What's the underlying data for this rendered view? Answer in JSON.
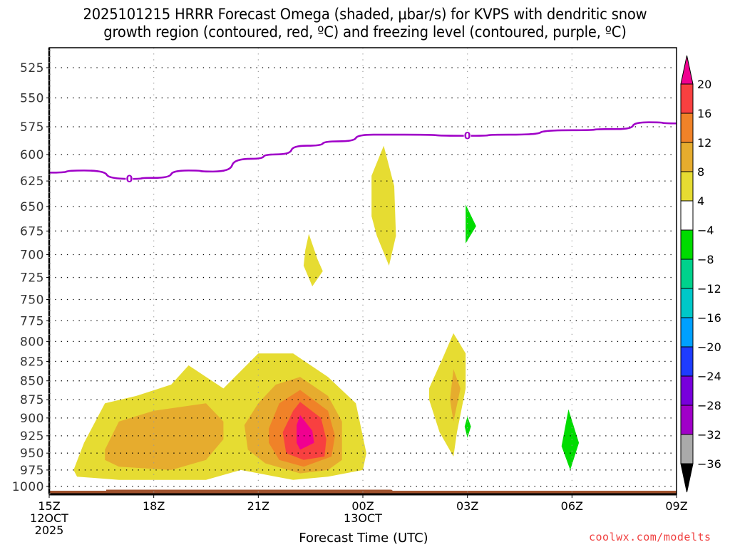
{
  "title_line1": "2025101215 HRRR Forecast Omega (shaded, μbar/s) for KVPS with dendritic snow",
  "title_line2": "growth region (contoured, red, ºC) and freezing level (contoured, purple, ºC)",
  "credit": "coolwx.com/modelts",
  "chart_data": {
    "type": "heatmap",
    "title": "2025101215 HRRR Forecast Omega (shaded, μbar/s) for KVPS with dendritic snow growth region (contoured, red, ºC) and freezing level (contoured, purple, ºC)",
    "xlabel": "Forecast Time (UTC)",
    "ylabel": "",
    "x_range_hours": [
      0,
      18
    ],
    "x_ticks": [
      {
        "hour": 0,
        "label": [
          "15Z",
          "12OCT",
          "2025"
        ]
      },
      {
        "hour": 3,
        "label": [
          "18Z"
        ]
      },
      {
        "hour": 6,
        "label": [
          "21Z"
        ]
      },
      {
        "hour": 9,
        "label": [
          "00Z",
          "13OCT"
        ]
      },
      {
        "hour": 12,
        "label": [
          "03Z"
        ]
      },
      {
        "hour": 15,
        "label": [
          "06Z"
        ]
      },
      {
        "hour": 18,
        "label": [
          "09Z"
        ]
      }
    ],
    "y_axis": "pressure (hPa, log scale, reversed)",
    "y_ticks": [
      525,
      550,
      575,
      600,
      625,
      650,
      675,
      700,
      725,
      750,
      775,
      800,
      825,
      850,
      875,
      900,
      925,
      950,
      975,
      1000
    ],
    "y_range": [
      1015,
      508
    ],
    "grid": true,
    "colorbar": {
      "position": "right",
      "levels": [
        20,
        16,
        12,
        8,
        4,
        -4,
        -8,
        -12,
        -16,
        -20,
        -24,
        -28,
        -32,
        -36
      ],
      "colors": [
        "#f00090",
        "#f84040",
        "#f08228",
        "#e6ac2e",
        "#e6dc32",
        "#ffffff",
        "#00dc00",
        "#00d28c",
        "#00c8c8",
        "#00a0ff",
        "#1e3cff",
        "#7800dc",
        "#a000c8",
        "#aaaaaa",
        "#000000"
      ],
      "extend": "both"
    },
    "omega_regions": [
      {
        "name": "low-level-lift-west",
        "level": "4-8",
        "color": "#e6dc32",
        "points": [
          [
            0.7,
            975
          ],
          [
            1.0,
            935
          ],
          [
            1.6,
            880
          ],
          [
            2.5,
            870
          ],
          [
            3.5,
            855
          ],
          [
            4.0,
            830
          ],
          [
            5.0,
            860
          ],
          [
            6.0,
            815
          ],
          [
            7.0,
            815
          ],
          [
            8.0,
            845
          ],
          [
            8.8,
            880
          ],
          [
            9.1,
            950
          ],
          [
            9.0,
            975
          ],
          [
            8.0,
            985
          ],
          [
            7.0,
            990
          ],
          [
            5.5,
            975
          ],
          [
            4.5,
            990
          ],
          [
            2.0,
            990
          ],
          [
            0.8,
            985
          ]
        ]
      },
      {
        "name": "omega-west-8-12",
        "level": "8-12",
        "color": "#e6ac2e",
        "points": [
          [
            1.6,
            945
          ],
          [
            2.0,
            905
          ],
          [
            3.0,
            890
          ],
          [
            4.5,
            880
          ],
          [
            5.0,
            905
          ],
          [
            5.0,
            930
          ],
          [
            4.5,
            960
          ],
          [
            3.5,
            975
          ],
          [
            2.0,
            970
          ],
          [
            1.6,
            960
          ]
        ]
      },
      {
        "name": "omega-east-8-12",
        "level": "8-12",
        "color": "#e6ac2e",
        "points": [
          [
            5.6,
            910
          ],
          [
            6.0,
            880
          ],
          [
            6.5,
            855
          ],
          [
            7.2,
            845
          ],
          [
            8.0,
            870
          ],
          [
            8.4,
            905
          ],
          [
            8.4,
            960
          ],
          [
            8.0,
            975
          ],
          [
            7.2,
            980
          ],
          [
            6.2,
            965
          ],
          [
            5.7,
            945
          ]
        ]
      },
      {
        "name": "omega-east-12-16",
        "level": "12-16",
        "color": "#f08228",
        "points": [
          [
            6.3,
            915
          ],
          [
            6.6,
            880
          ],
          [
            7.2,
            862
          ],
          [
            8.0,
            890
          ],
          [
            8.2,
            925
          ],
          [
            8.1,
            955
          ],
          [
            7.3,
            970
          ],
          [
            6.6,
            960
          ],
          [
            6.3,
            935
          ]
        ]
      },
      {
        "name": "omega-east-16-20",
        "level": "16-20",
        "color": "#f84040",
        "points": [
          [
            6.7,
            920
          ],
          [
            7.0,
            890
          ],
          [
            7.2,
            878
          ],
          [
            7.8,
            900
          ],
          [
            7.95,
            930
          ],
          [
            7.9,
            955
          ],
          [
            7.3,
            960
          ],
          [
            6.8,
            950
          ]
        ]
      },
      {
        "name": "omega-max",
        "level": ">20",
        "color": "#f00090",
        "points": [
          [
            7.1,
            910
          ],
          [
            7.2,
            896
          ],
          [
            7.55,
            918
          ],
          [
            7.6,
            935
          ],
          [
            7.2,
            945
          ],
          [
            7.1,
            935
          ]
        ]
      },
      {
        "name": "mid-level-lift-1",
        "level": "4-8",
        "color": "#e6dc32",
        "points": [
          [
            7.45,
            678
          ],
          [
            7.7,
            705
          ],
          [
            7.85,
            718
          ],
          [
            7.55,
            735
          ],
          [
            7.3,
            712
          ],
          [
            7.35,
            695
          ]
        ]
      },
      {
        "name": "mid-level-lift-2",
        "level": "4-8",
        "color": "#e6dc32",
        "points": [
          [
            9.25,
            620
          ],
          [
            9.6,
            592
          ],
          [
            9.9,
            630
          ],
          [
            9.95,
            680
          ],
          [
            9.75,
            712
          ],
          [
            9.4,
            680
          ],
          [
            9.25,
            660
          ]
        ]
      },
      {
        "name": "lift-03z-east",
        "level": "4-8",
        "color": "#e6dc32",
        "points": [
          [
            10.9,
            860
          ],
          [
            11.3,
            820
          ],
          [
            11.6,
            790
          ],
          [
            11.95,
            815
          ],
          [
            11.95,
            860
          ],
          [
            11.7,
            920
          ],
          [
            11.6,
            955
          ],
          [
            11.2,
            920
          ],
          [
            10.9,
            875
          ]
        ]
      },
      {
        "name": "lift-03z-inner",
        "level": "8-12",
        "color": "#e6ac2e",
        "points": [
          [
            11.5,
            875
          ],
          [
            11.6,
            835
          ],
          [
            11.8,
            860
          ],
          [
            11.6,
            905
          ]
        ]
      },
      {
        "name": "sink-1",
        "level": "-4 to -8",
        "color": "#00dc00",
        "points": [
          [
            11.95,
            690
          ],
          [
            11.95,
            648
          ],
          [
            12.25,
            670
          ],
          [
            11.95,
            688
          ]
        ]
      },
      {
        "name": "sink-2",
        "level": "-4 to -8",
        "color": "#00dc00",
        "points": [
          [
            12.0,
            898
          ],
          [
            12.1,
            912
          ],
          [
            12.0,
            928
          ],
          [
            11.92,
            912
          ]
        ]
      },
      {
        "name": "sink-3",
        "level": "-4 to -8",
        "color": "#00dc00",
        "points": [
          [
            14.9,
            888
          ],
          [
            15.2,
            935
          ],
          [
            14.95,
            975
          ],
          [
            14.7,
            940
          ]
        ]
      }
    ],
    "freezing_level_0C": {
      "color": "#a000c8",
      "label": "0",
      "points": [
        [
          0,
          617
        ],
        [
          1.0,
          615
        ],
        [
          2.3,
          623
        ],
        [
          3.0,
          622
        ],
        [
          4.0,
          615
        ],
        [
          4.7,
          616
        ],
        [
          5.8,
          604
        ],
        [
          6.5,
          600
        ],
        [
          7.4,
          592
        ],
        [
          8.3,
          588
        ],
        [
          9.3,
          582
        ],
        [
          10.2,
          582
        ],
        [
          12.0,
          583
        ],
        [
          13.2,
          582
        ],
        [
          15.0,
          578
        ],
        [
          16.3,
          577
        ],
        [
          17.2,
          571
        ],
        [
          18.0,
          572
        ]
      ],
      "label_positions_hours": [
        2.3,
        12.0
      ]
    },
    "terrain": {
      "color": "#a0522d",
      "surface_pressure_approx": 1010
    }
  }
}
